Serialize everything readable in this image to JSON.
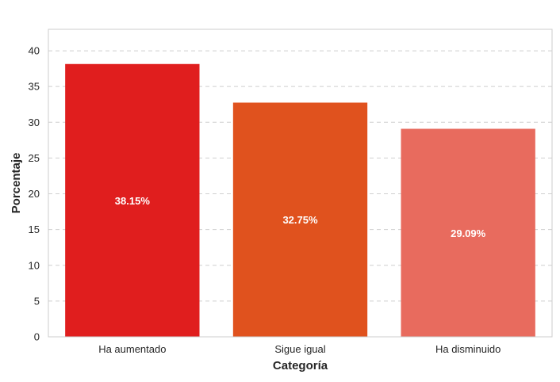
{
  "chart_data": {
    "type": "bar",
    "categories": [
      "Ha aumentado",
      "Sigue igual",
      "Ha disminuido"
    ],
    "values": [
      38.15,
      32.75,
      29.09
    ],
    "data_labels": [
      "38.15%",
      "32.75%",
      "29.09%"
    ],
    "colors": [
      "#e01e1e",
      "#e0521e",
      "#e86b5e"
    ],
    "title": "",
    "xlabel": "Categoría",
    "ylabel": "Porcentaje",
    "ylim": [
      0,
      43
    ],
    "yticks": [
      0,
      5,
      10,
      15,
      20,
      25,
      30,
      35,
      40
    ],
    "grid": "y-dashed",
    "legend": "none"
  }
}
